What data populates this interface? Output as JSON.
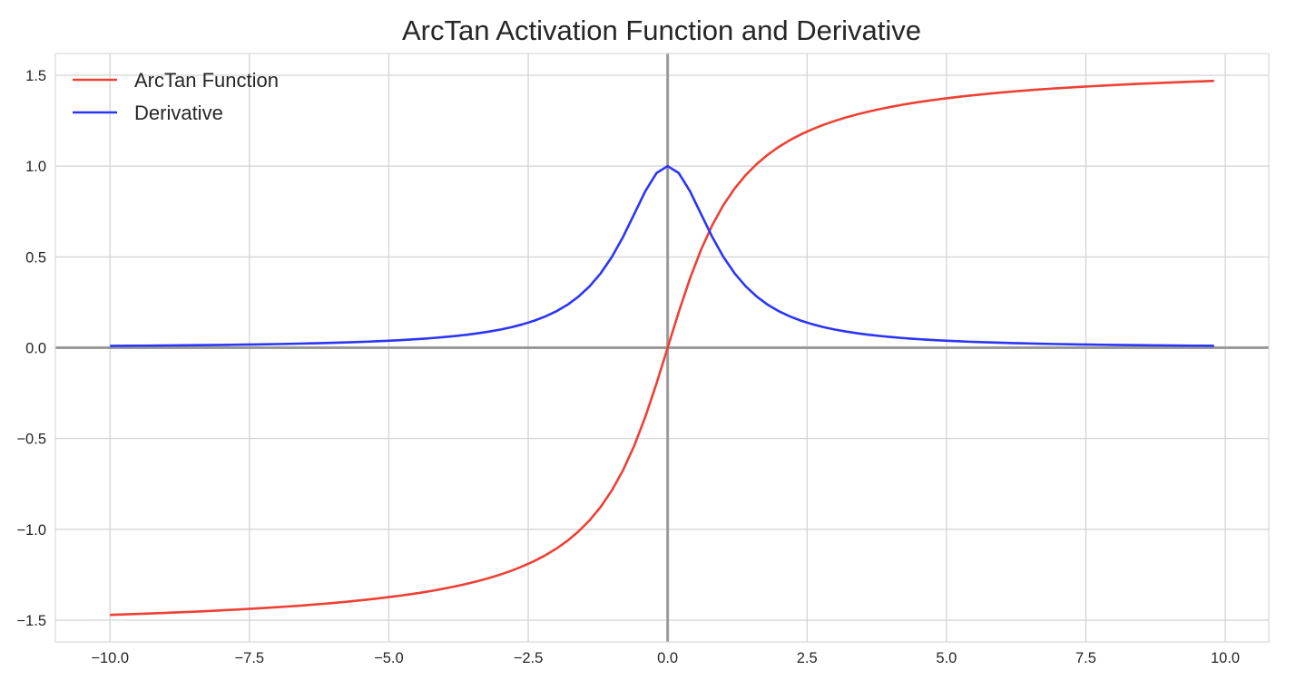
{
  "chart_data": {
    "type": "line",
    "title": "ArcTan Activation Function and Derivative",
    "xlabel": "",
    "ylabel": "",
    "xlim": [
      -10.98,
      10.78
    ],
    "ylim": [
      -1.62,
      1.62
    ],
    "x_ticks": [
      -10.0,
      -7.5,
      -5.0,
      -2.5,
      0.0,
      2.5,
      5.0,
      7.5,
      10.0
    ],
    "x_tick_labels": [
      "−10.0",
      "−7.5",
      "−5.0",
      "−2.5",
      "0.0",
      "2.5",
      "5.0",
      "7.5",
      "10.0"
    ],
    "y_ticks": [
      1.5,
      1.0,
      0.5,
      0.0,
      -0.5,
      -1.0,
      -1.5
    ],
    "y_tick_labels": [
      "1.5",
      "1.0",
      "0.5",
      "0.0",
      "−0.5",
      "−1.0",
      "−1.5"
    ],
    "grid": true,
    "zero_lines": true,
    "legend_position": "top-left",
    "x": [
      -10.0,
      -9.8,
      -9.6,
      -9.4,
      -9.2,
      -9.0,
      -8.8,
      -8.6,
      -8.4,
      -8.2,
      -8.0,
      -7.8,
      -7.6,
      -7.4,
      -7.2,
      -7.0,
      -6.8,
      -6.6,
      -6.4,
      -6.2,
      -6.0,
      -5.8,
      -5.6,
      -5.4,
      -5.2,
      -5.0,
      -4.8,
      -4.6,
      -4.4,
      -4.2,
      -4.0,
      -3.8,
      -3.6,
      -3.4,
      -3.2,
      -3.0,
      -2.8,
      -2.6,
      -2.4,
      -2.2,
      -2.0,
      -1.8,
      -1.6,
      -1.4,
      -1.2,
      -1.0,
      -0.8,
      -0.6,
      -0.4,
      -0.2,
      0.0,
      0.2,
      0.4,
      0.6,
      0.8,
      1.0,
      1.2,
      1.4,
      1.6,
      1.8,
      2.0,
      2.2,
      2.4,
      2.6,
      2.8,
      3.0,
      3.2,
      3.4,
      3.6,
      3.8,
      4.0,
      4.2,
      4.4,
      4.6,
      4.8,
      5.0,
      5.2,
      5.4,
      5.6,
      5.8,
      6.0,
      6.2,
      6.4,
      6.6,
      6.8,
      7.0,
      7.2,
      7.4,
      7.6,
      7.8,
      8.0,
      8.2,
      8.4,
      8.6,
      8.8,
      9.0,
      9.2,
      9.4,
      9.6,
      9.8
    ],
    "series": [
      {
        "name": "ArcTan Function",
        "color": "#ee4035",
        "values": [
          -1.4711,
          -1.4691,
          -1.467,
          -1.4648,
          -1.4625,
          -1.4601,
          -1.4576,
          -1.4549,
          -1.4522,
          -1.4493,
          -1.4464,
          -1.4429,
          -1.4397,
          -1.4362,
          -1.4325,
          -1.4289,
          -1.4246,
          -1.4204,
          -1.4158,
          -1.4109,
          -1.4056,
          -1.4,
          -1.394,
          -1.3876,
          -1.3808,
          -1.3734,
          -1.3654,
          -1.3568,
          -1.3476,
          -1.3374,
          -1.3258,
          -1.3135,
          -1.2998,
          -1.2847,
          -1.2679,
          -1.249,
          -1.2278,
          -1.2036,
          -1.176,
          -1.1442,
          -1.1071,
          -1.0637,
          -1.0122,
          -0.9505,
          -0.8761,
          -0.7854,
          -0.6747,
          -0.5404,
          -0.3805,
          -0.1974,
          0.0,
          0.1974,
          0.3805,
          0.5404,
          0.6747,
          0.7854,
          0.8761,
          0.9505,
          1.0122,
          1.0637,
          1.1071,
          1.1442,
          1.176,
          1.2036,
          1.2278,
          1.249,
          1.2679,
          1.2847,
          1.2998,
          1.3135,
          1.3258,
          1.3374,
          1.3476,
          1.3568,
          1.3654,
          1.3734,
          1.3808,
          1.3876,
          1.394,
          1.4,
          1.4056,
          1.4109,
          1.4158,
          1.4204,
          1.4246,
          1.4289,
          1.4325,
          1.4362,
          1.4397,
          1.4429,
          1.4464,
          1.4493,
          1.4522,
          1.4549,
          1.4576,
          1.4601,
          1.4625,
          1.4648,
          1.467,
          1.4691
        ]
      },
      {
        "name": "Derivative",
        "color": "#2b35f5",
        "values": [
          0.0099,
          0.0103,
          0.0107,
          0.0112,
          0.0117,
          0.0122,
          0.0127,
          0.0133,
          0.014,
          0.0147,
          0.0154,
          0.0162,
          0.017,
          0.0179,
          0.0189,
          0.02,
          0.0212,
          0.0224,
          0.0238,
          0.0253,
          0.027,
          0.0289,
          0.0309,
          0.0331,
          0.0357,
          0.0385,
          0.0416,
          0.0452,
          0.0491,
          0.0536,
          0.0588,
          0.0648,
          0.0716,
          0.0796,
          0.089,
          0.1,
          0.1131,
          0.1289,
          0.1479,
          0.1712,
          0.2,
          0.2358,
          0.2809,
          0.3378,
          0.4098,
          0.5,
          0.6098,
          0.7353,
          0.8621,
          0.9615,
          1.0,
          0.9615,
          0.8621,
          0.7353,
          0.6098,
          0.5,
          0.4098,
          0.3378,
          0.2809,
          0.2358,
          0.2,
          0.1712,
          0.1479,
          0.1289,
          0.1131,
          0.1,
          0.089,
          0.0796,
          0.0716,
          0.0648,
          0.0588,
          0.0536,
          0.0491,
          0.0452,
          0.0416,
          0.0385,
          0.0357,
          0.0331,
          0.0309,
          0.0289,
          0.027,
          0.0253,
          0.0238,
          0.0224,
          0.0212,
          0.02,
          0.0189,
          0.0179,
          0.017,
          0.0162,
          0.0154,
          0.0147,
          0.014,
          0.0133,
          0.0127,
          0.0122,
          0.0117,
          0.0112,
          0.0107,
          0.0103
        ]
      }
    ]
  }
}
